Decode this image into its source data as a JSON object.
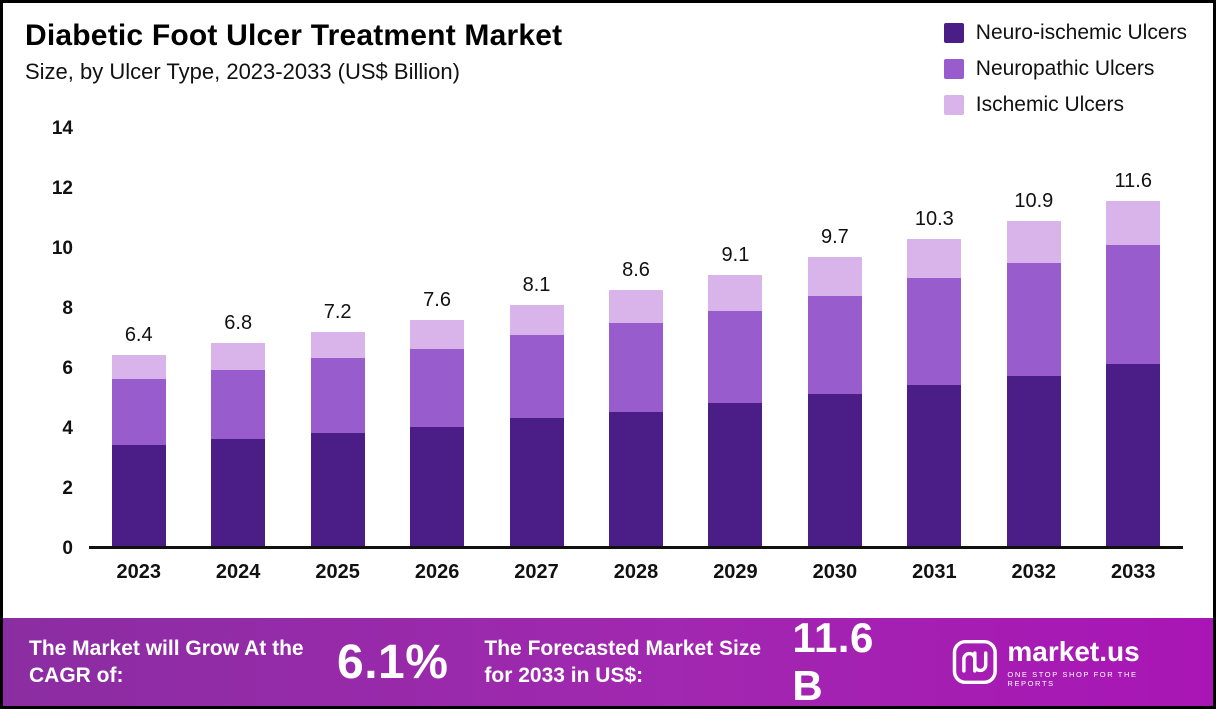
{
  "header": {
    "title": "Diabetic Foot Ulcer Treatment Market",
    "subtitle": "Size, by Ulcer Type, 2023-2033 (US$ Billion)"
  },
  "colors": {
    "neuro_ischemic": "#4b1e87",
    "neuropathic": "#985ccd",
    "ischemic": "#d8b4ea",
    "axis": "#111111"
  },
  "chart_data": {
    "type": "bar",
    "stacked": true,
    "title": "Diabetic Foot Ulcer Treatment Market",
    "subtitle": "Size, by Ulcer Type, 2023-2033 (US$ Billion)",
    "xlabel": "",
    "ylabel": "",
    "ylim": [
      0,
      14
    ],
    "y_ticks": [
      14,
      12,
      10,
      8,
      6,
      4,
      2,
      0
    ],
    "grid": false,
    "legend_position": "top-right",
    "categories": [
      "2023",
      "2024",
      "2025",
      "2026",
      "2027",
      "2028",
      "2029",
      "2030",
      "2031",
      "2032",
      "2033"
    ],
    "series": [
      {
        "name": "Neuro-ischemic Ulcers",
        "color": "#4b1e87",
        "values": [
          3.4,
          3.6,
          3.8,
          4.0,
          4.3,
          4.5,
          4.8,
          5.1,
          5.4,
          5.7,
          6.1
        ]
      },
      {
        "name": "Neuropathic Ulcers",
        "color": "#985ccd",
        "values": [
          2.2,
          2.3,
          2.5,
          2.6,
          2.8,
          3.0,
          3.1,
          3.3,
          3.6,
          3.8,
          4.0
        ]
      },
      {
        "name": "Ischemic Ulcers",
        "color": "#d8b4ea",
        "values": [
          0.8,
          0.9,
          0.9,
          1.0,
          1.0,
          1.1,
          1.2,
          1.3,
          1.3,
          1.4,
          1.5
        ]
      }
    ],
    "totals": [
      6.4,
      6.8,
      7.2,
      7.6,
      8.1,
      8.6,
      9.1,
      9.7,
      10.3,
      10.9,
      11.6
    ]
  },
  "footer": {
    "cagr_label": "The Market will Grow At the CAGR of:",
    "cagr_value": "6.1%",
    "forecast_label": "The Forecasted Market Size for 2033 in US$:",
    "forecast_value": "11.6 B",
    "brand": "market.us",
    "brand_tagline": "ONE STOP SHOP FOR THE REPORTS"
  }
}
